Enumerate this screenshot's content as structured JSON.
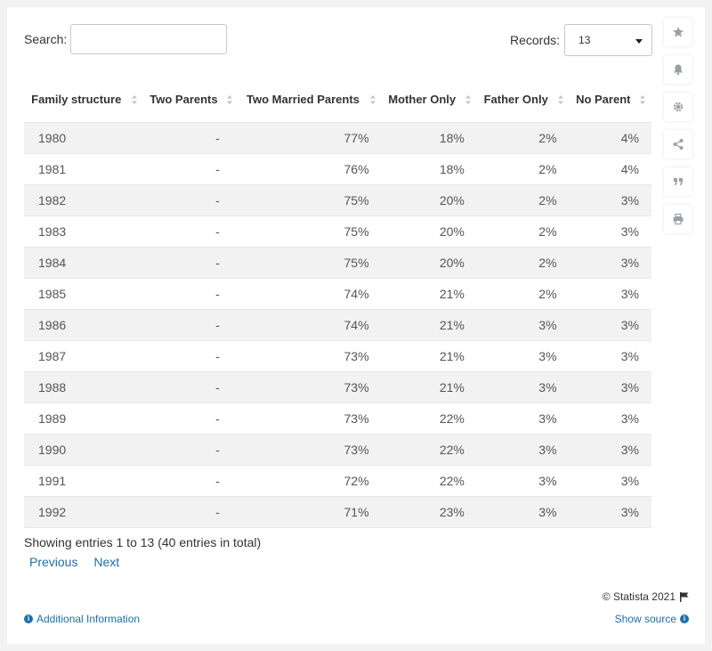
{
  "search": {
    "label": "Search:",
    "value": "",
    "placeholder": ""
  },
  "records": {
    "label": "Records:",
    "value": "13"
  },
  "table": {
    "headers": [
      "Family structure",
      "Two Parents",
      "Two Married Parents",
      "Mother Only",
      "Father Only",
      "No Parent"
    ],
    "rows": [
      [
        "1980",
        "-",
        "77%",
        "18%",
        "2%",
        "4%"
      ],
      [
        "1981",
        "-",
        "76%",
        "18%",
        "2%",
        "4%"
      ],
      [
        "1982",
        "-",
        "75%",
        "20%",
        "2%",
        "3%"
      ],
      [
        "1983",
        "-",
        "75%",
        "20%",
        "2%",
        "3%"
      ],
      [
        "1984",
        "-",
        "75%",
        "20%",
        "2%",
        "3%"
      ],
      [
        "1985",
        "-",
        "74%",
        "21%",
        "2%",
        "3%"
      ],
      [
        "1986",
        "-",
        "74%",
        "21%",
        "3%",
        "3%"
      ],
      [
        "1987",
        "-",
        "73%",
        "21%",
        "3%",
        "3%"
      ],
      [
        "1988",
        "-",
        "73%",
        "21%",
        "3%",
        "3%"
      ],
      [
        "1989",
        "-",
        "73%",
        "22%",
        "3%",
        "3%"
      ],
      [
        "1990",
        "-",
        "73%",
        "22%",
        "3%",
        "3%"
      ],
      [
        "1991",
        "-",
        "72%",
        "22%",
        "3%",
        "3%"
      ],
      [
        "1992",
        "-",
        "71%",
        "23%",
        "3%",
        "3%"
      ]
    ]
  },
  "summary": "Showing entries 1 to 13 (40 entries in total)",
  "pager": {
    "previous": "Previous",
    "next": "Next"
  },
  "footer": {
    "copyright": "© Statista 2021",
    "additional_info": "Additional Information",
    "show_source": "Show source"
  },
  "sidebar": {
    "icons": [
      "star-icon",
      "bell-icon",
      "gear-icon",
      "share-icon",
      "quote-icon",
      "print-icon"
    ]
  },
  "colors": {
    "link": "#1e6fa8",
    "stripe": "#f2f2f2",
    "background": "#f2f2f2"
  }
}
